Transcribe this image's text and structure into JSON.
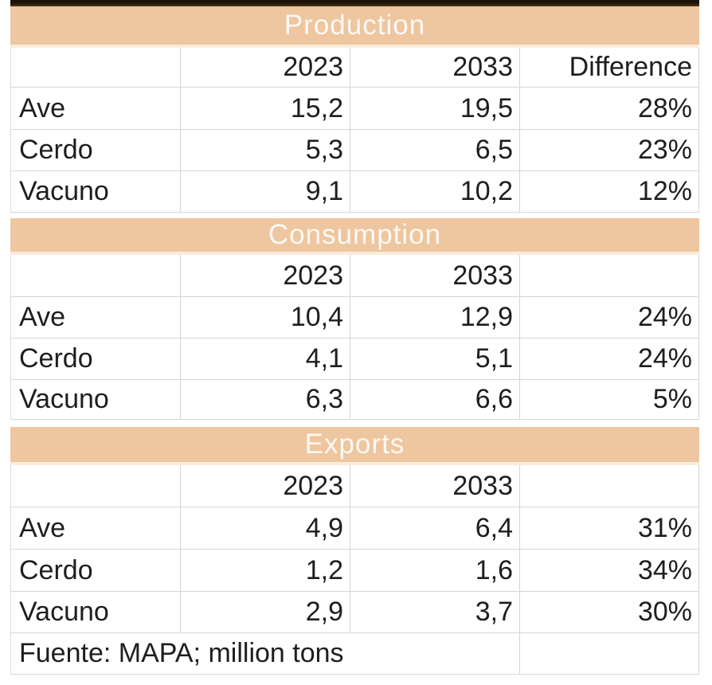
{
  "colors": {
    "band_background": "#eec7a0",
    "band_text": "#ffffff",
    "gridline": "#d6d6d6",
    "cell_text": "#1e1e1e",
    "top_strip": "#221708",
    "page_background": "#ffffff"
  },
  "table": {
    "sections": [
      {
        "title": "Production",
        "columns": {
          "label": "",
          "year1": "2023",
          "year2": "2033",
          "diff": "Difference"
        },
        "rows": [
          {
            "label": "Ave",
            "year1": "15,2",
            "year2": "19,5",
            "diff": "28%"
          },
          {
            "label": "Cerdo",
            "year1": "5,3",
            "year2": "6,5",
            "diff": "23%"
          },
          {
            "label": "Vacuno",
            "year1": "9,1",
            "year2": "10,2",
            "diff": "12%"
          }
        ]
      },
      {
        "title": "Consumption",
        "columns": {
          "label": "",
          "year1": "2023",
          "year2": "2033",
          "diff": ""
        },
        "rows": [
          {
            "label": "Ave",
            "year1": "10,4",
            "year2": "12,9",
            "diff": "24%"
          },
          {
            "label": "Cerdo",
            "year1": "4,1",
            "year2": "5,1",
            "diff": "24%"
          },
          {
            "label": "Vacuno",
            "year1": "6,3",
            "year2": "6,6",
            "diff": "5%"
          }
        ]
      },
      {
        "title": "Exports",
        "columns": {
          "label": "",
          "year1": "2023",
          "year2": "2033",
          "diff": ""
        },
        "rows": [
          {
            "label": "Ave",
            "year1": "4,9",
            "year2": "6,4",
            "diff": "31%"
          },
          {
            "label": "Cerdo",
            "year1": "1,2",
            "year2": "1,6",
            "diff": "34%"
          },
          {
            "label": "Vacuno",
            "year1": "2,9",
            "year2": "3,7",
            "diff": "30%"
          }
        ]
      }
    ],
    "footer_note": "Fuente: MAPA; million tons"
  }
}
